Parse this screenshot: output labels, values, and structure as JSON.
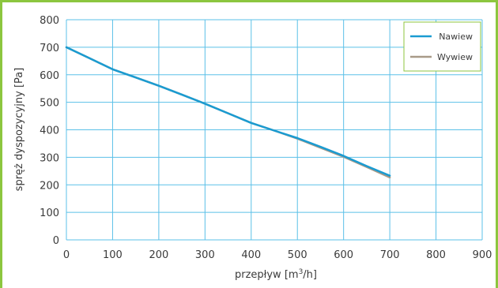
{
  "chart_data": {
    "type": "line",
    "xlabel_main": "przepływ [m",
    "xlabel_sup": "3",
    "xlabel_end": "/h]",
    "ylabel": "spręż dyspozycyjny  [Pa]",
    "xlim": [
      0,
      900
    ],
    "ylim": [
      0,
      800
    ],
    "xticks": [
      0,
      100,
      200,
      300,
      400,
      500,
      600,
      700,
      800,
      900
    ],
    "yticks": [
      0,
      100,
      200,
      300,
      400,
      500,
      600,
      700,
      800
    ],
    "grid": true,
    "legend_position": "top-right",
    "series": [
      {
        "name": "Nawiew",
        "color": "#1a9bd1",
        "x": [
          0,
          50,
          100,
          150,
          200,
          250,
          300,
          350,
          400,
          450,
          500,
          550,
          600,
          650,
          700
        ],
        "y": [
          700,
          660,
          620,
          590,
          560,
          528,
          495,
          460,
          425,
          397,
          370,
          338,
          305,
          268,
          233
        ]
      },
      {
        "name": "Wywiew",
        "color": "#a89a88",
        "x": [
          0,
          50,
          100,
          150,
          200,
          250,
          300,
          350,
          400,
          450,
          500,
          550,
          600,
          650,
          700
        ],
        "y": [
          700,
          660,
          620,
          590,
          560,
          528,
          495,
          460,
          425,
          397,
          368,
          335,
          302,
          265,
          227
        ]
      }
    ]
  }
}
